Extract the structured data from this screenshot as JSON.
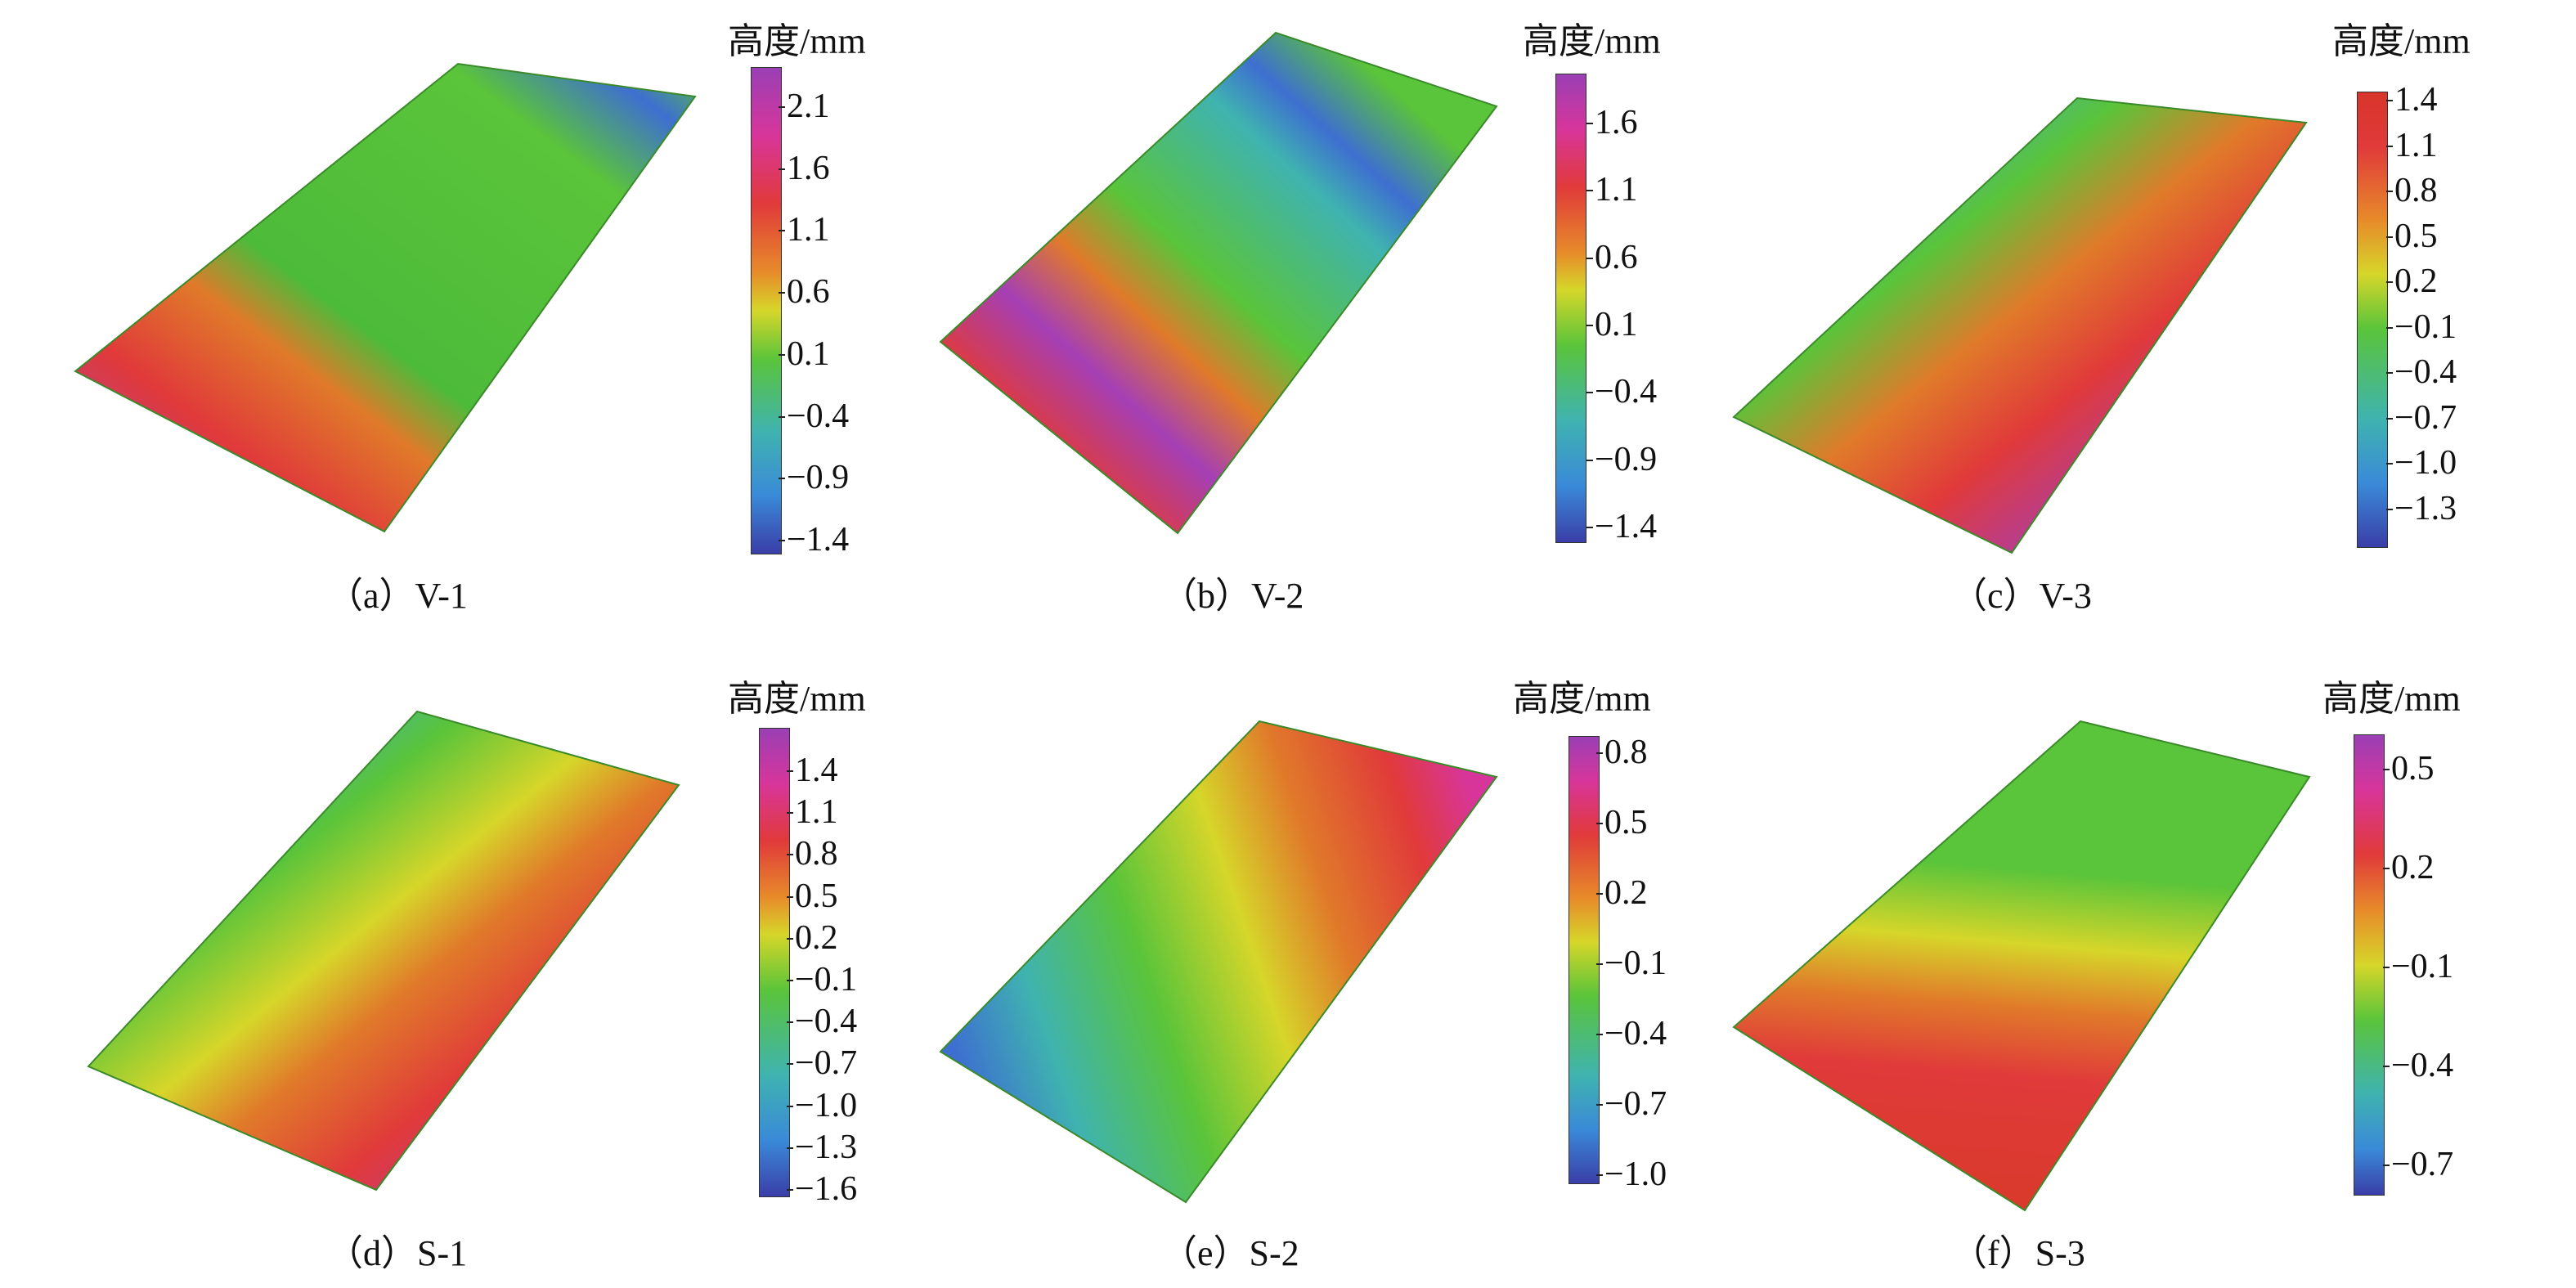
{
  "panels": [
    {
      "id": "a",
      "caption": "（a）V-1",
      "colorbar_title": "高度/mm",
      "ticks": [
        "2.1",
        "1.6",
        "1.1",
        "0.6",
        "0.1",
        "−0.4",
        "−0.9",
        "−1.4"
      ],
      "dominant_colors": [
        "#3ea93a",
        "#e03a3a",
        "#a53fb5"
      ]
    },
    {
      "id": "b",
      "caption": "（b）V-2",
      "colorbar_title": "高度/mm",
      "ticks": [
        "1.6",
        "1.1",
        "0.6",
        "0.1",
        "−0.4",
        "−0.9",
        "−1.4"
      ],
      "dominant_colors": [
        "#4dbb3a",
        "#e03a3a",
        "#3e6fd0"
      ]
    },
    {
      "id": "c",
      "caption": "（c）V-3",
      "colorbar_title": "高度/mm",
      "ticks": [
        "1.4",
        "1.1",
        "0.8",
        "0.5",
        "0.2",
        "−0.1",
        "−0.4",
        "−0.7",
        "−1.0",
        "−1.3"
      ],
      "dominant_colors": [
        "#4dbb3a",
        "#e03a3a",
        "#3e6fd0"
      ]
    },
    {
      "id": "d",
      "caption": "（d）S-1",
      "colorbar_title": "高度/mm",
      "ticks": [
        "1.4",
        "1.1",
        "0.8",
        "0.5",
        "0.2",
        "−0.1",
        "−0.4",
        "−0.7",
        "−1.0",
        "−1.3",
        "−1.6"
      ],
      "dominant_colors": [
        "#4dbb3a",
        "#e03a3a",
        "#b03ab0"
      ]
    },
    {
      "id": "e",
      "caption": "（e）S-2",
      "colorbar_title": "高度/mm",
      "ticks": [
        "0.8",
        "0.5",
        "0.2",
        "−0.1",
        "−0.4",
        "−0.7",
        "−1.0"
      ],
      "dominant_colors": [
        "#3e6fd0",
        "#4dbb3a",
        "#e03a3a"
      ]
    },
    {
      "id": "f",
      "caption": "（f）S-3",
      "colorbar_title": "高度/mm",
      "ticks": [
        "0.5",
        "0.2",
        "−0.1",
        "−0.4",
        "−0.7"
      ],
      "dominant_colors": [
        "#4dbb3a",
        "#e07a2a",
        "#d83a2a"
      ]
    }
  ]
}
